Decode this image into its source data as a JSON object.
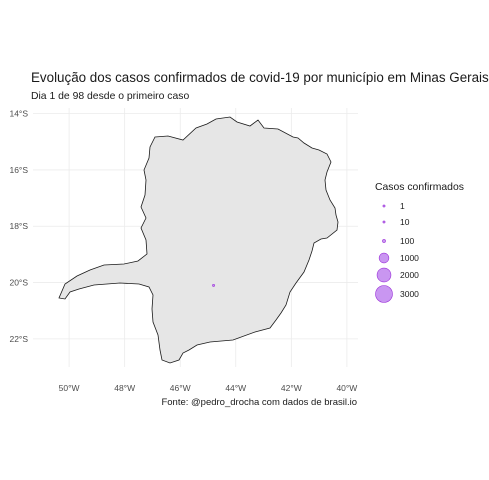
{
  "title": "Evolução dos casos confirmados de covid-19 por município em Minas Gerais",
  "subtitle": "Dia 1 de 98 desde o primeiro caso",
  "caption": "Fonte: @pedro_drocha com dados de brasil.io",
  "colors": {
    "state_fill": "#e6e6e6",
    "state_border": "#1a1a1a",
    "point": "#c084ee",
    "point_border": "#9b30d9",
    "grid": "#ebebeb"
  },
  "chart_data": {
    "type": "scatter",
    "map_region": "Minas Gerais",
    "x_ticks": [
      -50,
      -48,
      -46,
      -44,
      -42,
      -40
    ],
    "x_tick_labels": [
      "50°W",
      "48°W",
      "46°W",
      "44°W",
      "42°W",
      "40°W"
    ],
    "y_ticks": [
      -14,
      -16,
      -18,
      -20,
      -22
    ],
    "y_tick_labels": [
      "14°S",
      "16°S",
      "18°S",
      "20°S",
      "22°S"
    ],
    "xlim": [
      -51.3,
      -39.6
    ],
    "ylim": [
      -23.0,
      -13.8
    ],
    "grid": true,
    "legend": {
      "title": "Casos confirmados",
      "position": "right",
      "items": [
        {
          "label": "1",
          "value": 1
        },
        {
          "label": "10",
          "value": 10
        },
        {
          "label": "100",
          "value": 100
        },
        {
          "label": "1000",
          "value": 1000
        },
        {
          "label": "2000",
          "value": 2000
        },
        {
          "label": "3000",
          "value": 3000
        }
      ]
    },
    "points": [
      {
        "lon": -44.8,
        "lat": -20.1,
        "cases": 1
      }
    ]
  }
}
